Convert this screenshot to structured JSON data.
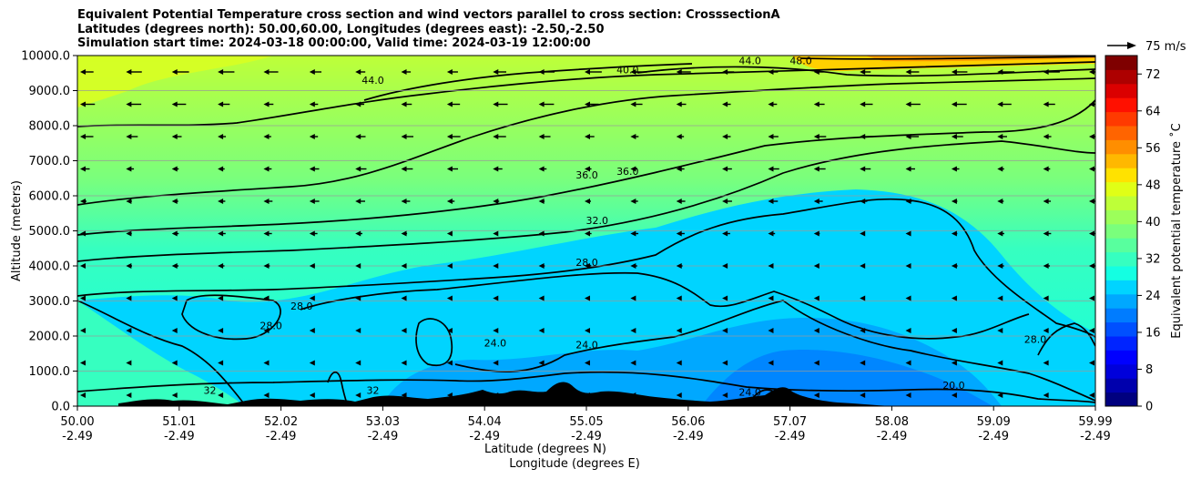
{
  "chart_data": {
    "type": "contour",
    "title_lines": [
      "Equivalent Potential Temperature cross section and wind vectors parallel to cross section: CrosssectionA",
      "Latitudes (degrees north): 50.00,60.00, Longitudes (degrees east): -2.50,-2.50",
      "Simulation start time: 2024-03-18 00:00:00, Valid time: 2024-03-19 12:00:00"
    ],
    "ylabel": "Altitude (meters)",
    "xlabel_lat": "Latitude (degrees N)",
    "xlabel_lon": "Longitude (degrees E)",
    "ylim": [
      0,
      10000
    ],
    "y_ticks": [
      "0.0",
      "1000.0",
      "2000.0",
      "3000.0",
      "4000.0",
      "5000.0",
      "6000.0",
      "7000.0",
      "8000.0",
      "9000.0",
      "10000.0"
    ],
    "x_ticks": [
      {
        "lat": "50.00",
        "lon": "-2.49"
      },
      {
        "lat": "51.01",
        "lon": "-2.49"
      },
      {
        "lat": "52.02",
        "lon": "-2.49"
      },
      {
        "lat": "53.03",
        "lon": "-2.49"
      },
      {
        "lat": "54.04",
        "lon": "-2.49"
      },
      {
        "lat": "55.05",
        "lon": "-2.49"
      },
      {
        "lat": "56.06",
        "lon": "-2.49"
      },
      {
        "lat": "57.07",
        "lon": "-2.49"
      },
      {
        "lat": "58.08",
        "lon": "-2.49"
      },
      {
        "lat": "59.09",
        "lon": "-2.49"
      },
      {
        "lat": "59.99",
        "lon": "-2.49"
      }
    ],
    "colorbar": {
      "label": "Equivalent potential temperature $^\\circ$C",
      "label_text": "Equivalent potential temperature ˚C",
      "min": 0,
      "max": 76,
      "ticks": [
        "0",
        "8",
        "16",
        "24",
        "32",
        "40",
        "48",
        "56",
        "64",
        "72"
      ],
      "colors": [
        "#00007f",
        "#0000ad",
        "#0000db",
        "#0000ff",
        "#0024ff",
        "#0050ff",
        "#007cff",
        "#00a8ff",
        "#00d4ff",
        "#14ffe2",
        "#36ffc0",
        "#58ff9e",
        "#7aff7c",
        "#9cff5a",
        "#beff38",
        "#e0ff16",
        "#ffe200",
        "#ffb800",
        "#ff8e00",
        "#ff6400",
        "#ff3a00",
        "#ff1000",
        "#db0000",
        "#ad0000",
        "#7f0000"
      ]
    },
    "reference_vector": {
      "label": "75 m/s"
    },
    "contour_labels": [
      {
        "text": "40.0",
        "lat": 55.4,
        "alt": 9500
      },
      {
        "text": "44.0",
        "lat": 52.9,
        "alt": 9200
      },
      {
        "text": "44.0",
        "lat": 56.6,
        "alt": 9750
      },
      {
        "text": "48.0",
        "lat": 57.1,
        "alt": 9750
      },
      {
        "text": "36.0",
        "lat": 55.0,
        "alt": 6500
      },
      {
        "text": "36.0",
        "lat": 55.4,
        "alt": 6600
      },
      {
        "text": "32.0",
        "lat": 55.1,
        "alt": 5200
      },
      {
        "text": "28.0",
        "lat": 55.0,
        "alt": 4000
      },
      {
        "text": "28.0",
        "lat": 51.9,
        "alt": 2200
      },
      {
        "text": "28.0",
        "lat": 52.2,
        "alt": 2750
      },
      {
        "text": "24.0",
        "lat": 54.1,
        "alt": 1700
      },
      {
        "text": "24.0",
        "lat": 55.0,
        "alt": 1650
      },
      {
        "text": "28.0",
        "lat": 59.4,
        "alt": 1800
      },
      {
        "text": "20.0",
        "lat": 58.6,
        "alt": 500
      },
      {
        "text": "24.0",
        "lat": 56.6,
        "alt": 300
      },
      {
        "text": "32",
        "lat": 51.3,
        "alt": 350
      },
      {
        "text": "32",
        "lat": 52.9,
        "alt": 350
      }
    ]
  }
}
